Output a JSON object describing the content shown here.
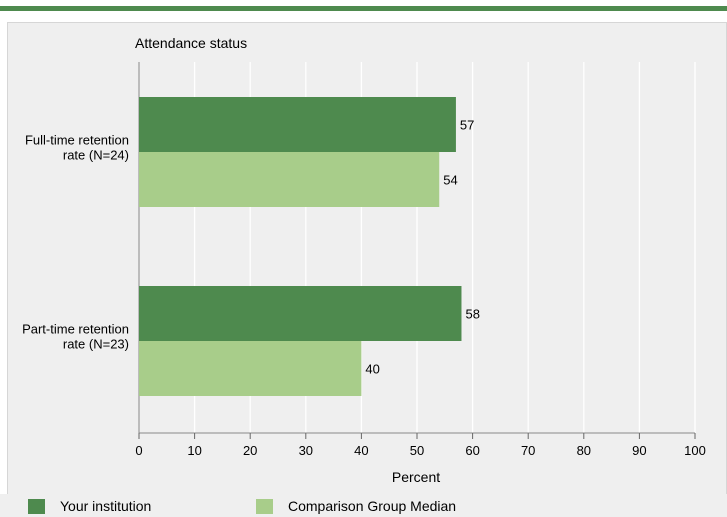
{
  "chart_data": {
    "type": "bar",
    "orientation": "horizontal",
    "title": "Attendance status",
    "xlabel": "Percent",
    "xlim": [
      0,
      100
    ],
    "xticks": [
      0,
      10,
      20,
      30,
      40,
      50,
      60,
      70,
      80,
      90,
      100
    ],
    "grid": true,
    "legend_position": "bottom",
    "categories": [
      [
        "Full-time retention",
        "rate (N=24)"
      ],
      [
        "Part-time retention",
        "rate (N=23)"
      ]
    ],
    "series": [
      {
        "name": "Your institution",
        "color": "#4e8a4e",
        "values": [
          57,
          58
        ]
      },
      {
        "name": "Comparison Group Median",
        "color": "#a8cd8a",
        "values": [
          54,
          40
        ]
      }
    ]
  }
}
